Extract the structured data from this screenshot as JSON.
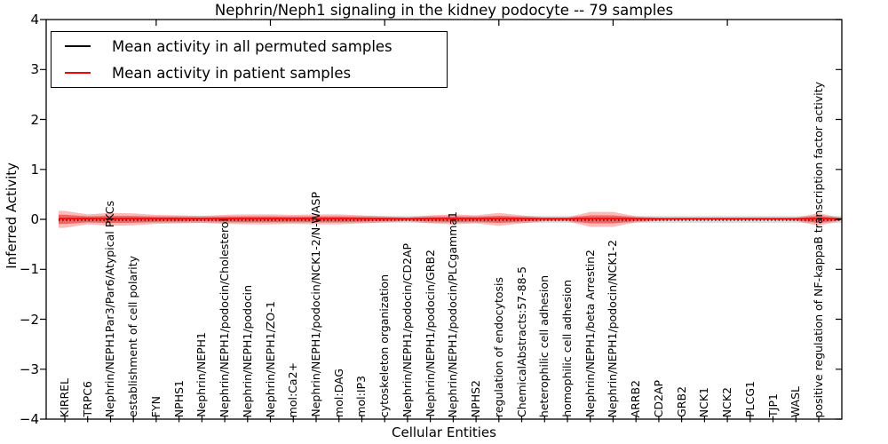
{
  "chart_data": {
    "type": "line",
    "title": "Nephrin/Neph1 signaling in the kidney podocyte -- 79 samples",
    "xlabel": "Cellular Entities",
    "ylabel": "Inferred Activity",
    "ylim": [
      -4,
      4
    ],
    "yticks": [
      4,
      3,
      2,
      1,
      0,
      -1,
      -2,
      -3,
      -4
    ],
    "yticklabels": [
      "4",
      "3",
      "2",
      "1",
      "0",
      "−1",
      "−2",
      "−3",
      "−4"
    ],
    "grid": false,
    "legend_position": "upper left",
    "top_axis_ticks_at_entity_number": [
      5,
      10,
      15,
      20,
      25,
      30
    ],
    "entities": [
      "KIRREL",
      "TRPC6",
      "Nephrin/NEPH1Par3/Par6/Atypical PKCs",
      "establishment of cell polarity",
      "FYN",
      "NPHS1",
      "Nephrin/NEPH1",
      "Nephrin/NEPH1/podocin/Cholesterol",
      "Nephrin/NEPH1/podocin",
      "Nephrin/NEPH1/ZO-1",
      "mol:Ca2+",
      "Nephrin/NEPH1/podocin/NCK1-2/N-WASP",
      "mol:DAG",
      "mol:IP3",
      "cytoskeleton organization",
      "Nephrin/NEPH1/podocin/CD2AP",
      "Nephrin/NEPH1/podocin/GRB2",
      "Nephrin/NEPH1/podocin/PLCgamma1",
      "NPHS2",
      "regulation of endocytosis",
      "ChemicalAbstracts:57-88-5",
      "heterophilic cell adhesion",
      "homophilic cell adhesion",
      "Nephrin/NEPH1/beta Arrestin2",
      "Nephrin/NEPH1/podocin/NCK1-2",
      "ARRB2",
      "CD2AP",
      "GRB2",
      "NCK1",
      "NCK2",
      "PLCG1",
      "TJP1",
      "WASL",
      "positive regulation of NF-kappaB transcription factor activity"
    ],
    "series": [
      {
        "name": "Mean activity in all permuted samples",
        "color": "#000000",
        "line_style": "dotted",
        "band_color": "#d9d9d9",
        "values": [
          0,
          0,
          0,
          0,
          0,
          0,
          0,
          0,
          0,
          0,
          0,
          0,
          0,
          0,
          0,
          0,
          0,
          0,
          0,
          0,
          0,
          0,
          0,
          0,
          0,
          0,
          0,
          0,
          0,
          0,
          0,
          0,
          0,
          0
        ],
        "band_halfwidth": [
          0.09,
          0.07,
          0.07,
          0.07,
          0.07,
          0.07,
          0.07,
          0.07,
          0.07,
          0.07,
          0.07,
          0.07,
          0.07,
          0.07,
          0.07,
          0.07,
          0.07,
          0.07,
          0.07,
          0.07,
          0.07,
          0.07,
          0.07,
          0.07,
          0.07,
          0.07,
          0.07,
          0.07,
          0.07,
          0.07,
          0.07,
          0.07,
          0.07,
          0.07
        ]
      },
      {
        "name": "Mean activity in patient samples",
        "color": "#ff0000",
        "line_style": "solid",
        "band_color": "#ff0000",
        "values": [
          0,
          0,
          0,
          0,
          0,
          0,
          0,
          0,
          0,
          0,
          0,
          0,
          0,
          0,
          0,
          0,
          0,
          0,
          0,
          0,
          0,
          0,
          0,
          0,
          0,
          0,
          0,
          0,
          0,
          0,
          0,
          0,
          0,
          0
        ],
        "band_halfwidth": [
          0.17,
          0.1,
          0.13,
          0.12,
          0.09,
          0.08,
          0.07,
          0.09,
          0.1,
          0.1,
          0.09,
          0.1,
          0.1,
          0.08,
          0.06,
          0.04,
          0.08,
          0.1,
          0.08,
          0.13,
          0.08,
          0.04,
          0.04,
          0.15,
          0.15,
          0.06,
          0.03,
          0.02,
          0.02,
          0.02,
          0.02,
          0.02,
          0.03,
          0.13
        ]
      }
    ]
  }
}
